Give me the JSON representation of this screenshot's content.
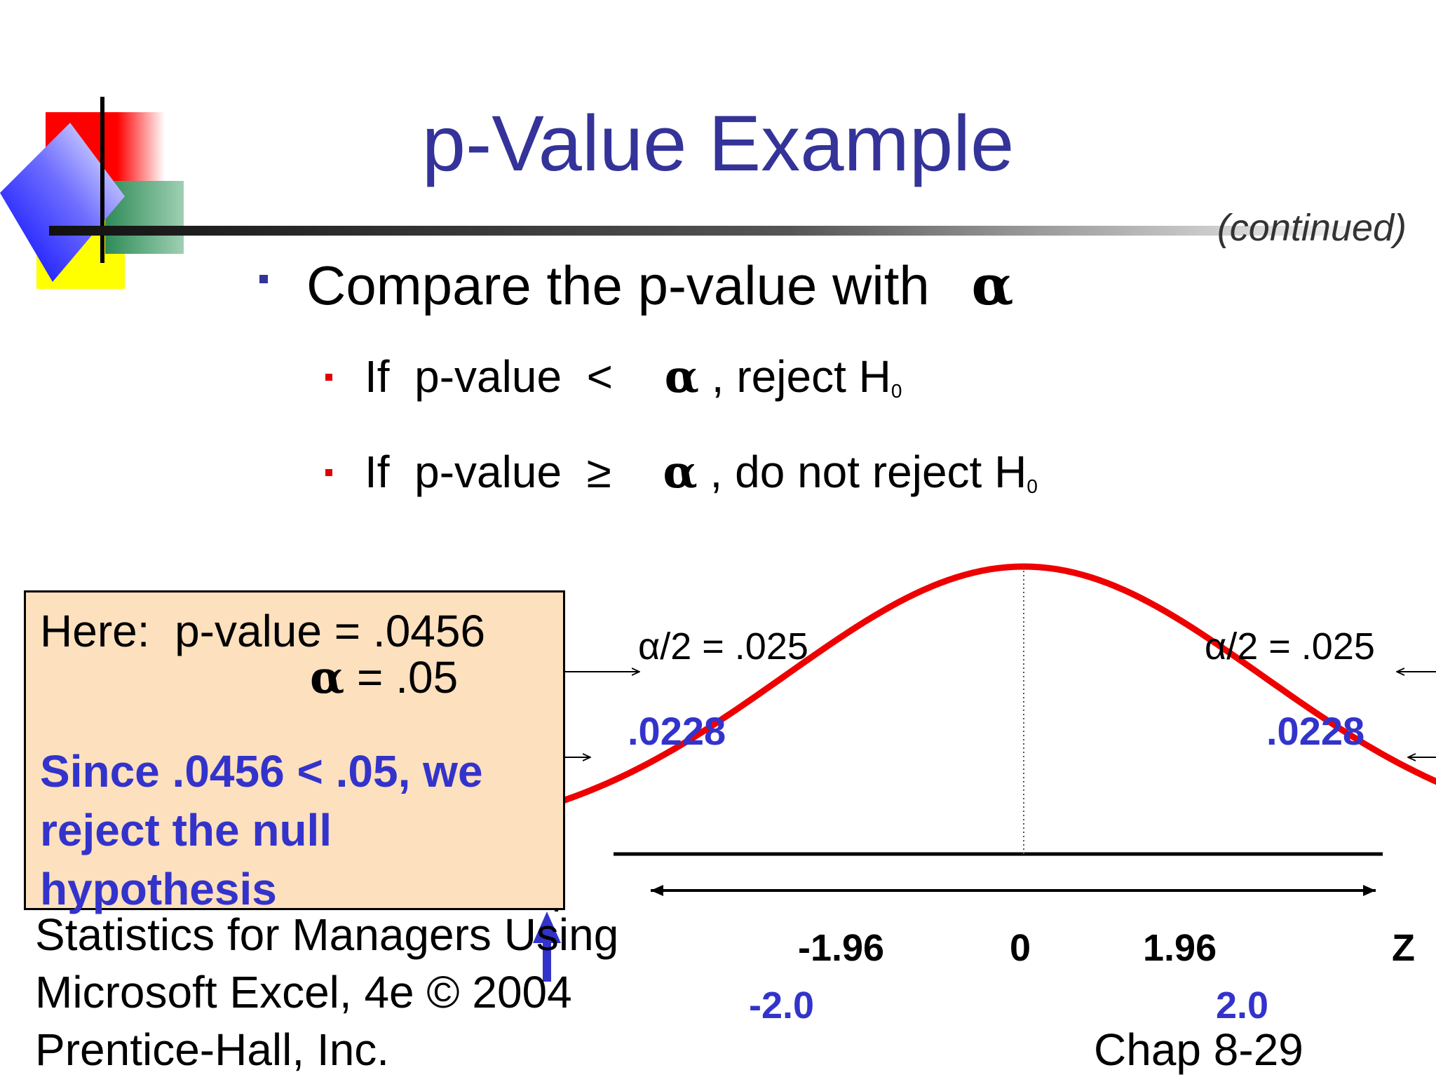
{
  "title": "p-Value Example",
  "continued": "(continued)",
  "bullets": {
    "main": {
      "pre": "Compare the p-value with",
      "symbol": "α"
    },
    "sub1": {
      "pre": "If  p-value  <",
      "symbol": "α",
      "post": ", reject H",
      "sub": "0"
    },
    "sub2": {
      "pre": "If  p-value  ≥",
      "symbol": "α",
      "post": ", do not reject H",
      "sub": "0"
    }
  },
  "box": {
    "here_line": "Here:  p-value = .0456",
    "alpha_symbol": "α",
    "alpha_value": " = .05",
    "conclusion": [
      "Since .0456 < .05, we",
      "reject the null",
      "hypothesis"
    ]
  },
  "chart_data": {
    "type": "area",
    "distribution": "standard normal",
    "x_axis_label": "Z",
    "tick_labels": [
      "-1.96",
      "0",
      "1.96"
    ],
    "tick_values": [
      -1.96,
      0,
      1.96
    ],
    "critical_region_labels": [
      "α/2 = .025",
      "α/2 = .025"
    ],
    "test_statistic_labels": [
      "-2.0",
      "2.0"
    ],
    "test_statistic_values": [
      -2.0,
      2.0
    ],
    "tail_area_labels": [
      ".0228",
      ".0228"
    ],
    "colors": {
      "curve": "#ee0000",
      "tail_fill": "#33bb33",
      "accent": "#3333cc"
    }
  },
  "footer": {
    "line1": "Statistics for Managers Using",
    "line2": "Microsoft Excel, 4e © 2004",
    "line3": "Prentice-Hall, Inc.",
    "chap": "Chap 8-29"
  }
}
